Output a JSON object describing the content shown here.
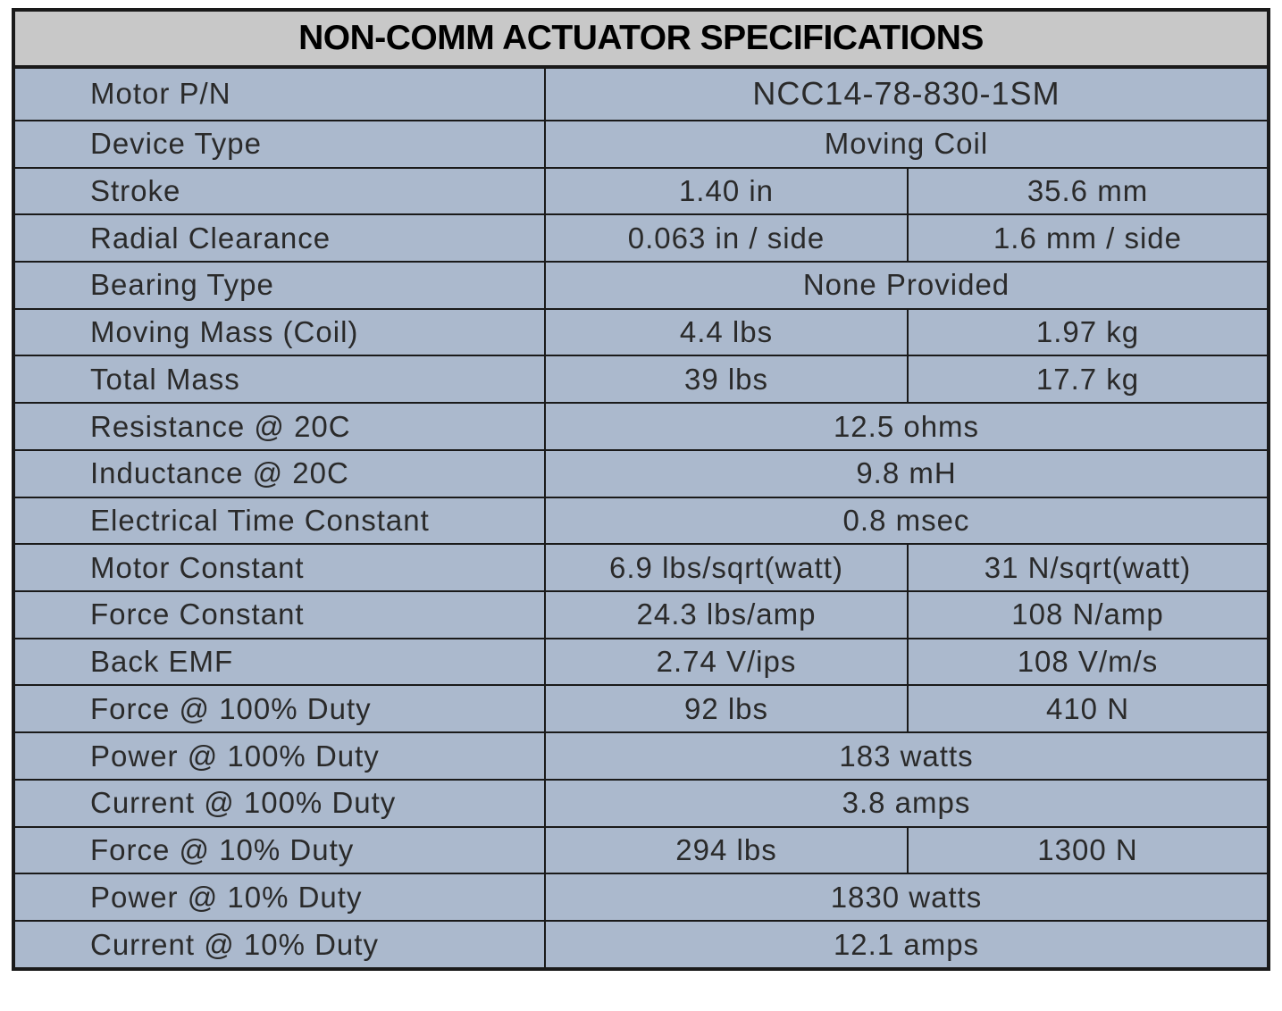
{
  "title": "NON-COMM ACTUATOR SPECIFICATIONS",
  "rows": [
    {
      "label": "Motor P/N",
      "imperial": "NCC14-78-830-1SM",
      "metric": null
    },
    {
      "label": "Device Type",
      "imperial": "Moving Coil",
      "metric": null
    },
    {
      "label": "Stroke",
      "imperial": "1.40 in",
      "metric": "35.6 mm"
    },
    {
      "label": "Radial Clearance",
      "imperial": "0.063 in / side",
      "metric": "1.6 mm / side"
    },
    {
      "label": "Bearing Type",
      "imperial": "None Provided",
      "metric": null
    },
    {
      "label": "Moving Mass (Coil)",
      "imperial": "4.4 lbs",
      "metric": "1.97 kg"
    },
    {
      "label": "Total Mass",
      "imperial": "39 lbs",
      "metric": "17.7 kg"
    },
    {
      "label": "Resistance @ 20C",
      "imperial": "12.5 ohms",
      "metric": null
    },
    {
      "label": "Inductance @ 20C",
      "imperial": "9.8 mH",
      "metric": null
    },
    {
      "label": "Electrical Time Constant",
      "imperial": "0.8 msec",
      "metric": null
    },
    {
      "label": "Motor Constant",
      "imperial": "6.9 lbs/sqrt(watt)",
      "metric": "31 N/sqrt(watt)"
    },
    {
      "label": "Force Constant",
      "imperial": "24.3 lbs/amp",
      "metric": "108 N/amp"
    },
    {
      "label": "Back EMF",
      "imperial": "2.74 V/ips",
      "metric": "108 V/m/s"
    },
    {
      "label": "Force @ 100% Duty",
      "imperial": "92 lbs",
      "metric": "410 N"
    },
    {
      "label": "Power @ 100% Duty",
      "imperial": "183 watts",
      "metric": null
    },
    {
      "label": "Current @ 100% Duty",
      "imperial": "3.8 amps",
      "metric": null
    },
    {
      "label": "Force @ 10% Duty",
      "imperial": "294 lbs",
      "metric": "1300 N"
    },
    {
      "label": "Power @ 10% Duty",
      "imperial": "1830 watts",
      "metric": null
    },
    {
      "label": "Current @ 10% Duty",
      "imperial": "12.1 amps",
      "metric": null
    }
  ]
}
